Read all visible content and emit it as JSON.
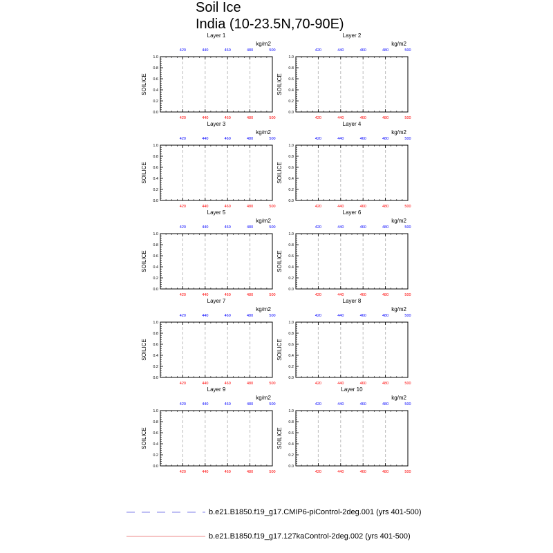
{
  "title_lines": [
    "Soil Ice",
    "India (10-23.5N,70-90E)"
  ],
  "colors": {
    "top_axis": "#0000ff",
    "bottom_axis": "#ff0000",
    "grid": "#bbbbbb",
    "series_1": "#9999ee",
    "series_2": "#f0a0a0"
  },
  "legend": [
    {
      "label": "b.e21.B1850.f19_g17.CMIP6-piControl-2deg.001 (yrs 401-500)",
      "style": "dashed",
      "color": "#9999ee"
    },
    {
      "label": "b.e21.B1850.f19_g17.127kaControl-2deg.002 (yrs 401-500)",
      "style": "solid",
      "color": "#f0a0a0"
    }
  ],
  "chart_data": {
    "type": "line",
    "layout": {
      "rows": 5,
      "cols": 2
    },
    "panels": [
      "Layer 1",
      "Layer 2",
      "Layer 3",
      "Layer 4",
      "Layer 5",
      "Layer 6",
      "Layer 7",
      "Layer 8",
      "Layer 9",
      "Layer 10"
    ],
    "units": "kg/m2",
    "ylabel": "SOILICE",
    "xlim": [
      400,
      500
    ],
    "ylim": [
      0,
      1
    ],
    "x_ticks": [
      420,
      440,
      460,
      480,
      500
    ],
    "y_ticks": [
      "0.0",
      "0.2",
      "0.4",
      "0.6",
      "0.8",
      "1.0"
    ],
    "vertical_dashed_grid_at": [
      420,
      440,
      460,
      480
    ],
    "series": [
      {
        "name": "b.e21.B1850.f19_g17.CMIP6-piControl-2deg.001 (yrs 401-500)",
        "x": [],
        "y": []
      },
      {
        "name": "b.e21.B1850.f19_g17.127kaControl-2deg.002 (yrs 401-500)",
        "x": [],
        "y": []
      }
    ]
  }
}
